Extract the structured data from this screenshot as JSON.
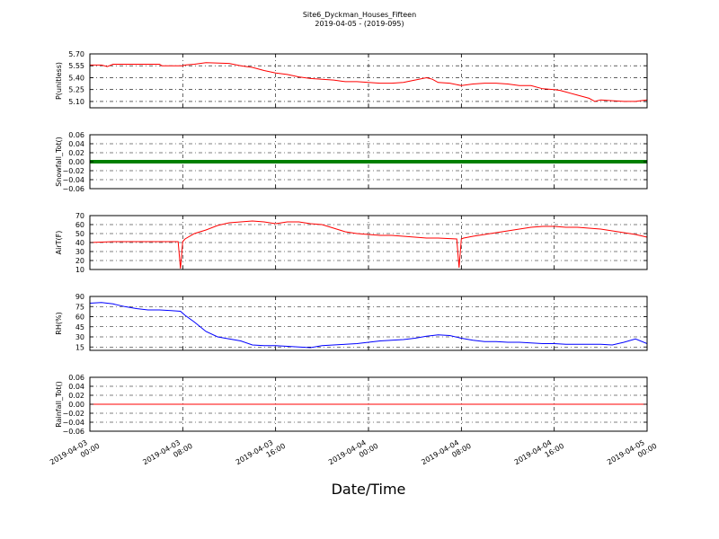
{
  "figure": {
    "title": "Site6_Dyckman_Houses_Fifteen",
    "subtitle": "2019-04-05 - (2019-095)",
    "xlabel": "Date/Time"
  },
  "chart_data": [
    {
      "type": "line",
      "ylabel": "P(unitless)",
      "ylim": [
        5.02,
        5.7
      ],
      "yticks": [
        "5.10",
        "5.25",
        "5.40",
        "5.55",
        "5.70"
      ],
      "ytick_values": [
        5.1,
        5.25,
        5.4,
        5.55,
        5.7
      ],
      "color": "#ff0000",
      "grid": true,
      "x": [
        0,
        1,
        1.5,
        2,
        3,
        4,
        6,
        6.2,
        8,
        8.2,
        9,
        10,
        12,
        13,
        14,
        15,
        16,
        17,
        18,
        19,
        20,
        21,
        22,
        23,
        24,
        25,
        26,
        27,
        28,
        29,
        29.5,
        30,
        31,
        32,
        33,
        34,
        35,
        36,
        37,
        38,
        39,
        40,
        40.5,
        41,
        42,
        43,
        43.5,
        44,
        45,
        46,
        47,
        48
      ],
      "y": [
        5.56,
        5.56,
        5.54,
        5.57,
        5.57,
        5.57,
        5.57,
        5.55,
        5.55,
        5.56,
        5.57,
        5.59,
        5.58,
        5.55,
        5.53,
        5.49,
        5.46,
        5.44,
        5.41,
        5.39,
        5.38,
        5.37,
        5.35,
        5.35,
        5.34,
        5.33,
        5.33,
        5.34,
        5.37,
        5.4,
        5.38,
        5.34,
        5.33,
        5.3,
        5.32,
        5.33,
        5.33,
        5.32,
        5.3,
        5.3,
        5.26,
        5.25,
        5.24,
        5.22,
        5.18,
        5.14,
        5.1,
        5.12,
        5.11,
        5.1,
        5.1,
        5.12
      ]
    },
    {
      "type": "line",
      "ylabel": "Snowfall_Tot()",
      "ylim": [
        -0.06,
        0.06
      ],
      "yticks": [
        "0.06",
        "0.04",
        "0.02",
        "0.00",
        "−0.02",
        "−0.04",
        "−0.06"
      ],
      "ytick_values": [
        0.06,
        0.04,
        0.02,
        0.0,
        -0.02,
        -0.04,
        -0.06
      ],
      "color": "#008000",
      "linewidth": 4,
      "grid": true,
      "x": [
        0,
        48
      ],
      "y": [
        0,
        0
      ]
    },
    {
      "type": "line",
      "ylabel": "AirT(F)",
      "ylim": [
        10,
        70
      ],
      "yticks": [
        "10",
        "20",
        "30",
        "40",
        "50",
        "60",
        "70"
      ],
      "ytick_values": [
        10,
        20,
        30,
        40,
        50,
        60,
        70
      ],
      "color": "#ff0000",
      "grid": true,
      "x": [
        0,
        2,
        4,
        6,
        7,
        7.6,
        7.8,
        8.0,
        8.2,
        9,
        10,
        11,
        12,
        13,
        14,
        15,
        16,
        17,
        18,
        19,
        20,
        21,
        22,
        23,
        24,
        25,
        26,
        27,
        28,
        29,
        30,
        31.6,
        31.8,
        32.0,
        32.2,
        33,
        34,
        35,
        36,
        37,
        38,
        39,
        40,
        41,
        42,
        43,
        44,
        45,
        46,
        47,
        48
      ],
      "y": [
        40,
        41,
        41,
        41,
        41,
        41,
        11,
        41,
        44,
        50,
        54,
        59,
        62,
        63,
        64,
        63,
        61,
        63,
        63,
        61,
        60,
        56,
        52,
        50,
        49,
        48,
        48,
        47,
        46,
        45,
        45,
        44,
        12,
        44,
        45,
        47,
        49,
        51,
        53,
        55,
        57,
        58,
        58,
        57,
        57,
        56,
        55,
        53,
        51,
        49,
        46
      ]
    },
    {
      "type": "line",
      "ylabel": "RH(%)",
      "ylim": [
        10,
        90
      ],
      "yticks": [
        "15",
        "30",
        "45",
        "60",
        "75",
        "90"
      ],
      "ytick_values": [
        15,
        30,
        45,
        60,
        75,
        90
      ],
      "color": "#0000ff",
      "grid": true,
      "x": [
        0,
        1,
        2,
        3,
        4,
        5,
        6,
        7,
        7.8,
        8.2,
        9,
        10,
        11,
        12,
        13,
        14,
        15,
        16,
        17,
        18,
        19,
        20,
        21,
        22,
        23,
        24,
        25,
        26,
        27,
        28,
        29,
        30,
        31,
        32,
        33,
        34,
        35,
        36,
        37,
        38,
        39,
        40,
        41,
        42,
        43,
        44,
        45,
        46,
        47,
        48
      ],
      "y": [
        80,
        81,
        79,
        75,
        72,
        70,
        70,
        69,
        68,
        62,
        52,
        38,
        30,
        27,
        24,
        18,
        17,
        17,
        16,
        15,
        14,
        17,
        18,
        19,
        20,
        22,
        24,
        25,
        26,
        28,
        31,
        33,
        32,
        28,
        25,
        23,
        23,
        22,
        22,
        21,
        20,
        20,
        19,
        19,
        19,
        19,
        18,
        22,
        27,
        20
      ]
    },
    {
      "type": "line",
      "ylabel": "Rainfall_Tot()",
      "ylim": [
        -0.06,
        0.06
      ],
      "yticks": [
        "0.06",
        "0.04",
        "0.02",
        "0.00",
        "−0.02",
        "−0.04",
        "−0.06"
      ],
      "ytick_values": [
        0.06,
        0.04,
        0.02,
        0.0,
        -0.02,
        -0.04,
        -0.06
      ],
      "color": "#ff0000",
      "grid": true,
      "x": [
        0,
        48
      ],
      "y": [
        0,
        0
      ]
    }
  ],
  "xaxis": {
    "xlim": [
      0,
      48
    ],
    "tick_values": [
      0,
      8,
      16,
      24,
      32,
      40,
      48
    ],
    "tick_dates": [
      "2019-04-03",
      "2019-04-03",
      "2019-04-03",
      "2019-04-04",
      "2019-04-04",
      "2019-04-04",
      "2019-04-05"
    ],
    "tick_times": [
      "00:00",
      "08:00",
      "16:00",
      "00:00",
      "08:00",
      "16:00",
      "00:00"
    ]
  }
}
